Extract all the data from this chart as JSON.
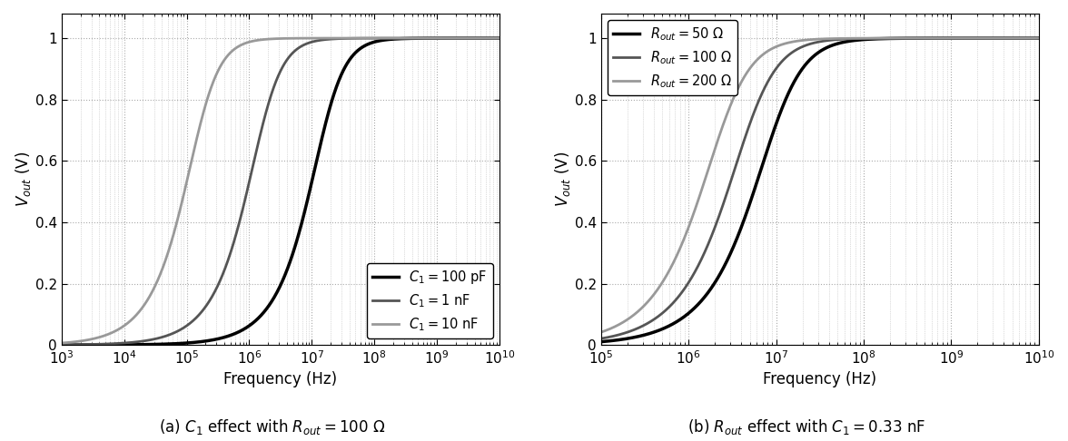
{
  "subplot_a": {
    "title": "(a) $C_1$ effect with $R_{out} = 100\\ \\Omega$",
    "xlabel": "Frequency (Hz)",
    "ylabel": "$V_{out}$ (V)",
    "xlim": [
      1000.0,
      10000000000.0
    ],
    "ylim": [
      0,
      1.08
    ],
    "R_out": 100,
    "curves": [
      {
        "C": 1e-10,
        "label": "$C_1 = 100$ pF",
        "color": "#000000",
        "lw": 2.5
      },
      {
        "C": 1e-09,
        "label": "$C_1 = 1$ nF",
        "color": "#555555",
        "lw": 2.0
      },
      {
        "C": 1e-08,
        "label": "$C_1 = 10$ nF",
        "color": "#999999",
        "lw": 2.0
      }
    ],
    "legend_loc": "lower right"
  },
  "subplot_b": {
    "title": "(b) $R_{out}$ effect with $C_1 = 0.33$ nF",
    "xlabel": "Frequency (Hz)",
    "ylabel": "$V_{out}$ (V)",
    "xlim": [
      100000.0,
      10000000000.0
    ],
    "ylim": [
      0,
      1.08
    ],
    "C1": 3.3e-10,
    "curves": [
      {
        "R": 50,
        "label": "$R_{out} = 50\\ \\Omega$",
        "color": "#000000",
        "lw": 2.5
      },
      {
        "R": 100,
        "label": "$R_{out} = 100\\ \\Omega$",
        "color": "#555555",
        "lw": 2.0
      },
      {
        "R": 200,
        "label": "$R_{out} = 200\\ \\Omega$",
        "color": "#999999",
        "lw": 2.0
      }
    ],
    "legend_loc": "upper left"
  },
  "background_color": "#ffffff",
  "grid_color": "#aaaaaa",
  "yticks": [
    0,
    0.2,
    0.4,
    0.6,
    0.8,
    1.0
  ],
  "ytick_labels": [
    "0",
    "0.2",
    "0.4",
    "0.6",
    "0.8",
    "1"
  ]
}
